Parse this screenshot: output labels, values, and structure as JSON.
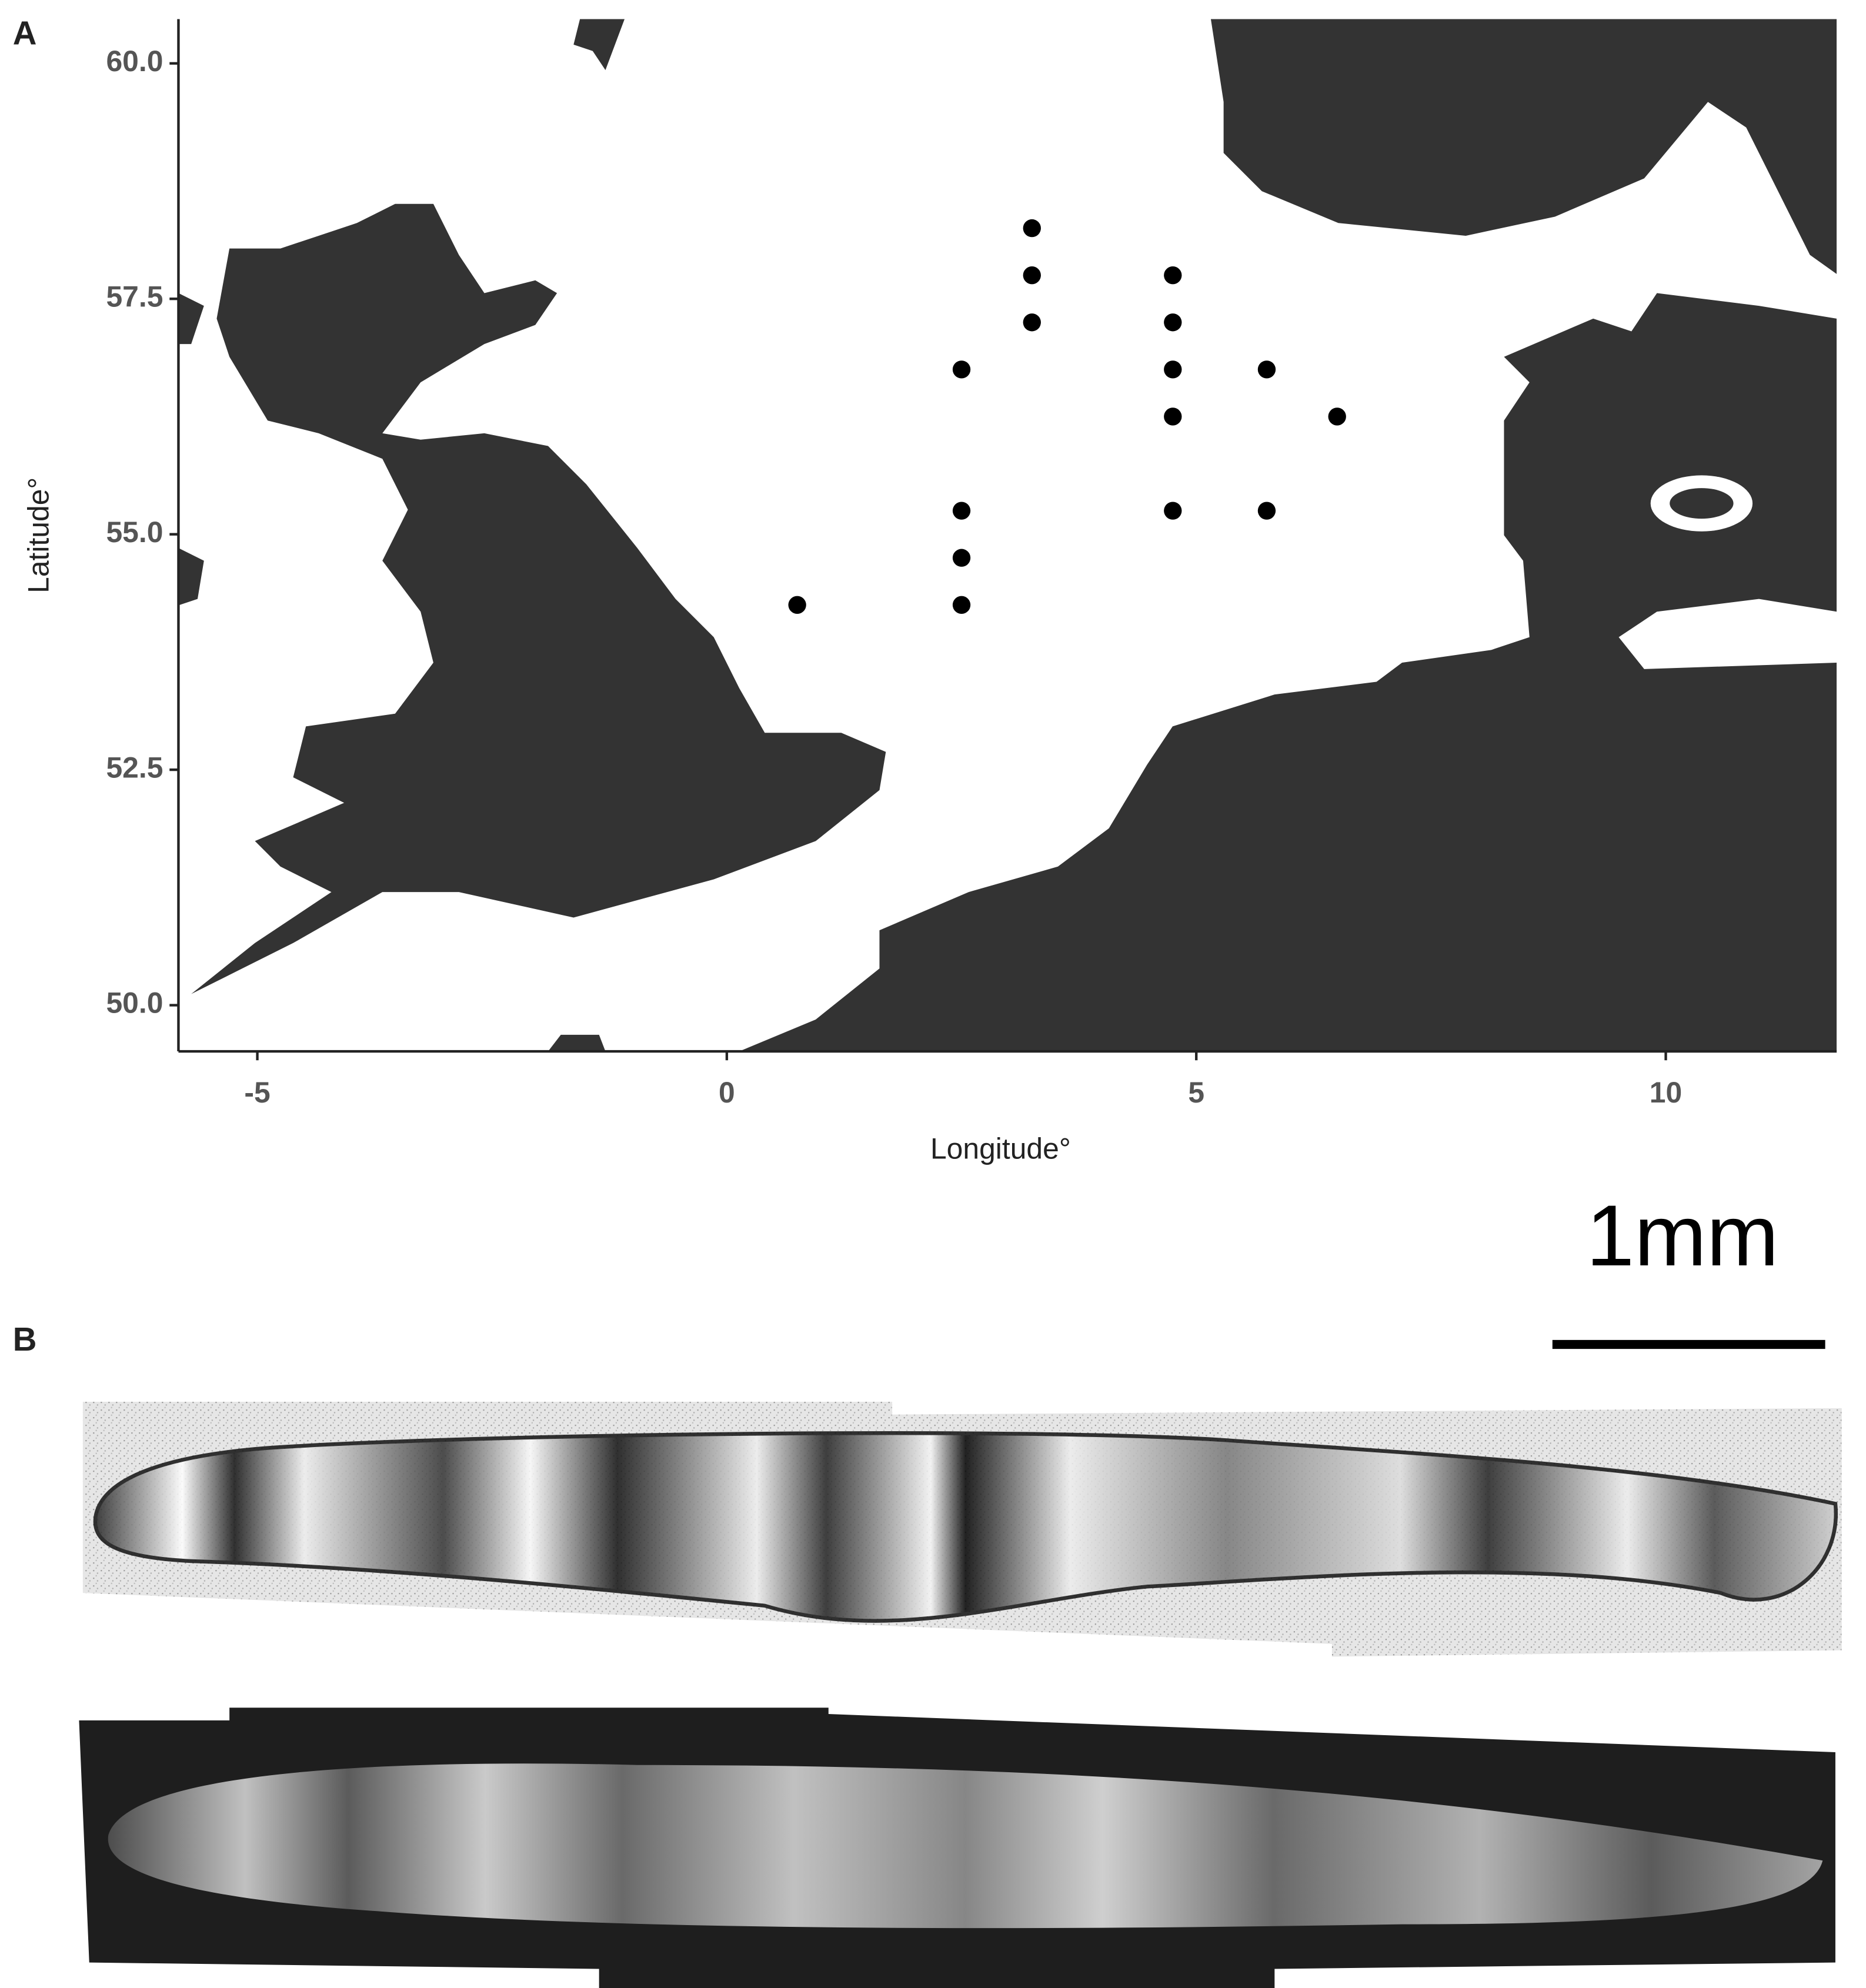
{
  "chart_data": {
    "type": "scatter",
    "panel_label": "A",
    "x_label": "Longitude°",
    "y_label": "Latitude°",
    "x": [
      3.25,
      3.25,
      3.25,
      2.5,
      4.75,
      4.75,
      4.75,
      4.75,
      5.75,
      6.5,
      2.5,
      2.5,
      2.5,
      0.75,
      4.75,
      5.75
    ],
    "values": [
      58.25,
      57.75,
      57.25,
      56.75,
      57.75,
      57.25,
      56.75,
      56.25,
      56.75,
      56.25,
      55.25,
      54.75,
      54.25,
      54.25,
      55.25,
      55.25
    ],
    "color": "#000000",
    "xlim": [
      -5.84,
      11.82
    ],
    "ylim": [
      49.51,
      60.47
    ],
    "xticks": [
      -5,
      0,
      5,
      10
    ],
    "yticks": [
      {
        "value": 50,
        "label": "50.0"
      },
      {
        "value": 52.5,
        "label": "52.5"
      },
      {
        "value": 55,
        "label": "55.0"
      },
      {
        "value": 57.5,
        "label": "57.5"
      },
      {
        "value": 60,
        "label": "60.0"
      }
    ]
  },
  "figure_b": {
    "panel_label": "B",
    "scale_bar_label": "1mm"
  }
}
